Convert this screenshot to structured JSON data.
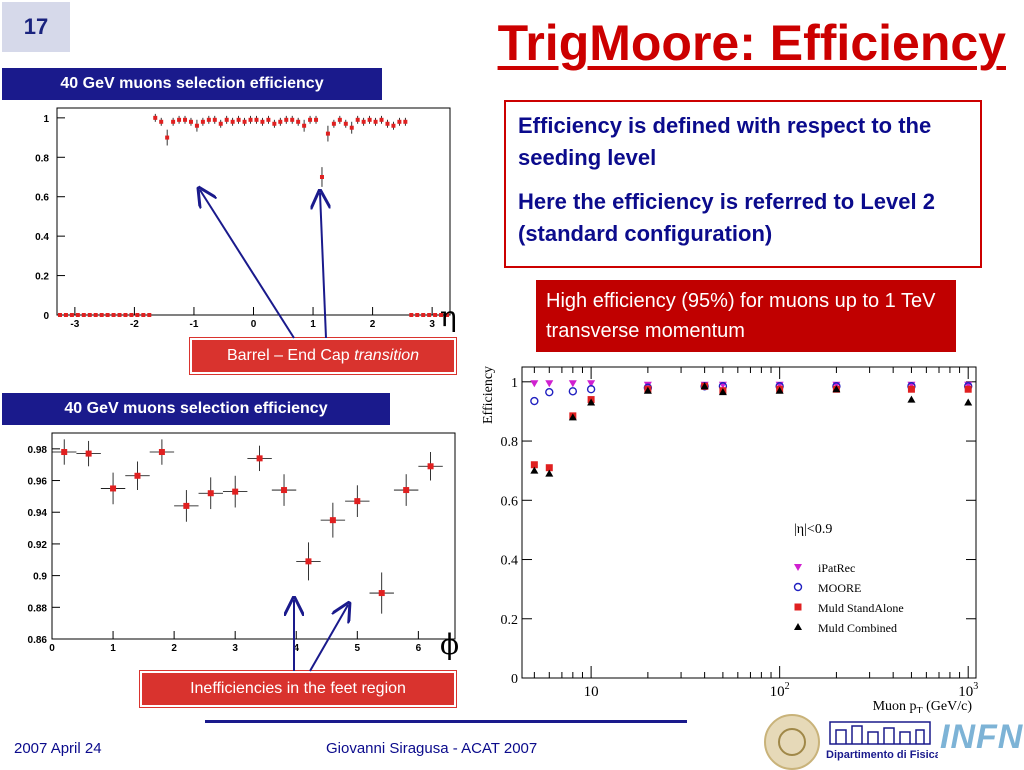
{
  "slide": {
    "number": "17",
    "title": "TrigMoore: Efficiency",
    "eta_symbol": "η",
    "phi_symbol": "ϕ"
  },
  "notes": {
    "line1": "Efficiency is defined with respect to the seeding level",
    "line2": "Here the efficiency is referred to Level 2 (standard configuration)",
    "highlight": "High efficiency (95%) for muons up to 1 TeV transverse momentum"
  },
  "callouts": {
    "barrel_prefix": "Barrel – End Cap ",
    "barrel_italic": "transition",
    "feet": "Inefficiencies in the feet region"
  },
  "footer": {
    "date": "2007 April 24",
    "author": "Giovanni Siragusa - ACAT 2007",
    "logo_text": "Dipartimento di Fisica",
    "infn": "INFN"
  },
  "chart_data": [
    {
      "type": "scatter",
      "title": "40 GeV muons selection efficiency",
      "xlim": [
        -3.3,
        3.3
      ],
      "ylim": [
        0,
        1.05
      ],
      "xticks": [
        "-3",
        "-2",
        "-1",
        "0",
        "1",
        "2",
        "3"
      ],
      "yticks": [
        "0",
        "0.2",
        "0.4",
        "0.6",
        "0.8",
        "1"
      ],
      "x": [
        -3.25,
        -3.15,
        -3.05,
        -2.95,
        -2.85,
        -2.75,
        -2.65,
        -2.55,
        -2.45,
        -2.35,
        -2.25,
        -2.15,
        -2.05,
        -1.95,
        -1.85,
        -1.75,
        -1.65,
        -1.55,
        -1.45,
        -1.35,
        -1.25,
        -1.15,
        -1.05,
        -0.95,
        -0.85,
        -0.75,
        -0.65,
        -0.55,
        -0.45,
        -0.35,
        -0.25,
        -0.15,
        -0.05,
        0.05,
        0.15,
        0.25,
        0.35,
        0.45,
        0.55,
        0.65,
        0.75,
        0.85,
        0.95,
        1.05,
        1.15,
        1.25,
        1.35,
        1.45,
        1.55,
        1.65,
        1.75,
        1.85,
        1.95,
        2.05,
        2.15,
        2.25,
        2.35,
        2.45,
        2.55,
        2.65,
        2.75,
        2.85,
        2.95,
        3.05,
        3.15,
        3.25
      ],
      "y": [
        0,
        0,
        0,
        0,
        0,
        0,
        0,
        0,
        0,
        0,
        0,
        0,
        0,
        0,
        0,
        0,
        1.0,
        0.98,
        0.9,
        0.98,
        0.99,
        0.99,
        0.98,
        0.96,
        0.98,
        0.99,
        0.99,
        0.97,
        0.99,
        0.98,
        0.99,
        0.98,
        0.99,
        0.99,
        0.98,
        0.99,
        0.97,
        0.98,
        0.99,
        0.99,
        0.98,
        0.96,
        0.99,
        0.99,
        0.7,
        0.92,
        0.97,
        0.99,
        0.97,
        0.95,
        0.99,
        0.98,
        0.99,
        0.98,
        0.99,
        0.97,
        0.96,
        0.98,
        0.98,
        0,
        0,
        0,
        0,
        0,
        0,
        0
      ],
      "errors": [
        0,
        0,
        0,
        0,
        0,
        0,
        0,
        0,
        0,
        0,
        0,
        0,
        0,
        0,
        0,
        0,
        0.01,
        0.01,
        0.03,
        0.01,
        0.01,
        0.01,
        0.01,
        0.02,
        0.01,
        0.01,
        0.01,
        0.01,
        0.01,
        0.01,
        0.01,
        0.01,
        0.01,
        0.01,
        0.01,
        0.01,
        0.01,
        0.01,
        0.01,
        0.01,
        0.01,
        0.02,
        0.01,
        0.01,
        0.04,
        0.03,
        0.01,
        0.01,
        0.01,
        0.02,
        0.01,
        0.01,
        0.01,
        0.01,
        0.01,
        0.01,
        0.01,
        0.01,
        0.01,
        0,
        0,
        0,
        0,
        0,
        0,
        0
      ]
    },
    {
      "type": "scatter",
      "title": "40 GeV muons selection efficiency",
      "xlim": [
        0,
        6.6
      ],
      "ylim": [
        0.86,
        0.99
      ],
      "xticks": [
        "0",
        "1",
        "2",
        "3",
        "4",
        "5",
        "6"
      ],
      "yticks": [
        "0.86",
        "0.88",
        "0.9",
        "0.92",
        "0.94",
        "0.96",
        "0.98"
      ],
      "x": [
        0.2,
        0.6,
        1.0,
        1.4,
        1.8,
        2.2,
        2.6,
        3.0,
        3.4,
        3.8,
        4.2,
        4.6,
        5.0,
        5.4,
        5.8,
        6.2
      ],
      "y": [
        0.978,
        0.977,
        0.955,
        0.963,
        0.978,
        0.944,
        0.952,
        0.953,
        0.974,
        0.954,
        0.909,
        0.935,
        0.947,
        0.889,
        0.954,
        0.969
      ],
      "errors": [
        0.008,
        0.008,
        0.01,
        0.009,
        0.008,
        0.01,
        0.01,
        0.01,
        0.008,
        0.01,
        0.012,
        0.011,
        0.01,
        0.013,
        0.01,
        0.009
      ]
    },
    {
      "type": "scatter",
      "xlabel": "Muon p_T (GeV/c)",
      "ylabel": "Efficiency",
      "xscale": "log",
      "xlim": [
        4.3,
        1100
      ],
      "ylim": [
        0,
        1.05
      ],
      "yticks": [
        "0",
        "0.2",
        "0.4",
        "0.6",
        "0.8",
        "1"
      ],
      "xticks": [
        "10",
        "10^2",
        "10^3"
      ],
      "annotation": "|η|<0.9",
      "legend_position": "right",
      "x": [
        5,
        6,
        8,
        10,
        20,
        40,
        50,
        100,
        200,
        500,
        1000
      ],
      "series": [
        {
          "name": "iPatRec",
          "marker": "triangle-down",
          "color": "#d020d0",
          "values": [
            0.995,
            0.995,
            0.995,
            0.995,
            0.99,
            0.99,
            0.99,
            0.99,
            0.99,
            0.99,
            0.99
          ]
        },
        {
          "name": "MOORE",
          "marker": "circle-open",
          "color": "#2020c0",
          "values": [
            0.935,
            0.965,
            0.968,
            0.975,
            0.98,
            0.985,
            0.985,
            0.985,
            0.985,
            0.985,
            0.985
          ]
        },
        {
          "name": "Muld StandAlone",
          "marker": "square",
          "color": "#e02020",
          "values": [
            0.72,
            0.71,
            0.885,
            0.94,
            0.975,
            0.985,
            0.97,
            0.975,
            0.975,
            0.975,
            0.975
          ]
        },
        {
          "name": "Muld Combined",
          "marker": "triangle-up",
          "color": "#000000",
          "values": [
            0.7,
            0.69,
            0.88,
            0.93,
            0.97,
            0.985,
            0.965,
            0.97,
            0.975,
            0.94,
            0.93
          ]
        }
      ]
    }
  ]
}
